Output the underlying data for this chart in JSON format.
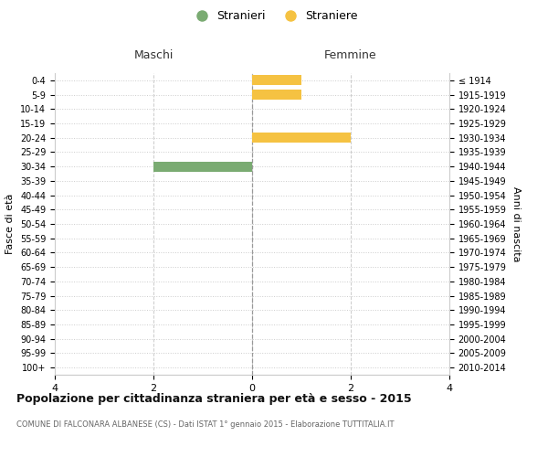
{
  "age_groups": [
    "0-4",
    "5-9",
    "10-14",
    "15-19",
    "20-24",
    "25-29",
    "30-34",
    "35-39",
    "40-44",
    "45-49",
    "50-54",
    "55-59",
    "60-64",
    "65-69",
    "70-74",
    "75-79",
    "80-84",
    "85-89",
    "90-94",
    "95-99",
    "100+"
  ],
  "birth_years": [
    "2010-2014",
    "2005-2009",
    "2000-2004",
    "1995-1999",
    "1990-1994",
    "1985-1989",
    "1980-1984",
    "1975-1979",
    "1970-1974",
    "1965-1969",
    "1960-1964",
    "1955-1959",
    "1950-1954",
    "1945-1949",
    "1940-1944",
    "1935-1939",
    "1930-1934",
    "1925-1929",
    "1920-1924",
    "1915-1919",
    "≤ 1914"
  ],
  "males": [
    0,
    0,
    0,
    0,
    0,
    0,
    2,
    0,
    0,
    0,
    0,
    0,
    0,
    0,
    0,
    0,
    0,
    0,
    0,
    0,
    0
  ],
  "females": [
    1,
    1,
    0,
    0,
    2,
    0,
    0,
    0,
    0,
    0,
    0,
    0,
    0,
    0,
    0,
    0,
    0,
    0,
    0,
    0,
    0
  ],
  "male_color": "#7aab72",
  "female_color": "#f5c242",
  "xlim": 4,
  "title": "Popolazione per cittadinanza straniera per età e sesso - 2015",
  "subtitle": "COMUNE DI FALCONARA ALBANESE (CS) - Dati ISTAT 1° gennaio 2015 - Elaborazione TUTTITALIA.IT",
  "ylabel_left": "Fasce di età",
  "ylabel_right": "Anni di nascita",
  "legend_male": "Stranieri",
  "legend_female": "Straniere",
  "header_male": "Maschi",
  "header_female": "Femmine",
  "xticks": [
    -4,
    -2,
    0,
    2,
    4
  ],
  "xtick_labels": [
    "4",
    "2",
    "0",
    "2",
    "4"
  ],
  "background_color": "#ffffff",
  "grid_color": "#cccccc",
  "bar_height": 0.7
}
